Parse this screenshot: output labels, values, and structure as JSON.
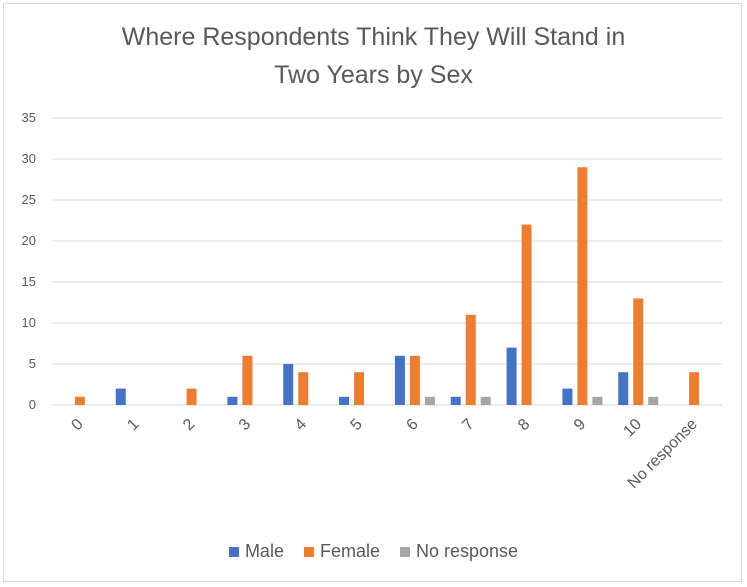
{
  "chart_data": {
    "type": "bar",
    "title_line1": "Where Respondents Think They Will Stand in",
    "title_line2": "Two Years by Sex",
    "categories": [
      "0",
      "1",
      "2",
      "3",
      "4",
      "5",
      "6",
      "7",
      "8",
      "9",
      "10",
      "No response"
    ],
    "series": [
      {
        "name": "Male",
        "color": "#4472c4",
        "values": [
          0,
          2,
          0,
          1,
          5,
          1,
          6,
          1,
          7,
          2,
          4,
          0
        ]
      },
      {
        "name": "Female",
        "color": "#ed7d31",
        "values": [
          1,
          0,
          2,
          6,
          4,
          4,
          6,
          11,
          22,
          29,
          13,
          4
        ]
      },
      {
        "name": "No response",
        "color": "#a5a5a5",
        "values": [
          0,
          0,
          0,
          0,
          0,
          0,
          1,
          1,
          0,
          1,
          1,
          0
        ]
      }
    ],
    "ylim": [
      0,
      35
    ],
    "yticks": [
      "0",
      "5",
      "10",
      "15",
      "20",
      "25",
      "30",
      "35"
    ],
    "grid": true,
    "legend_position": "bottom"
  }
}
